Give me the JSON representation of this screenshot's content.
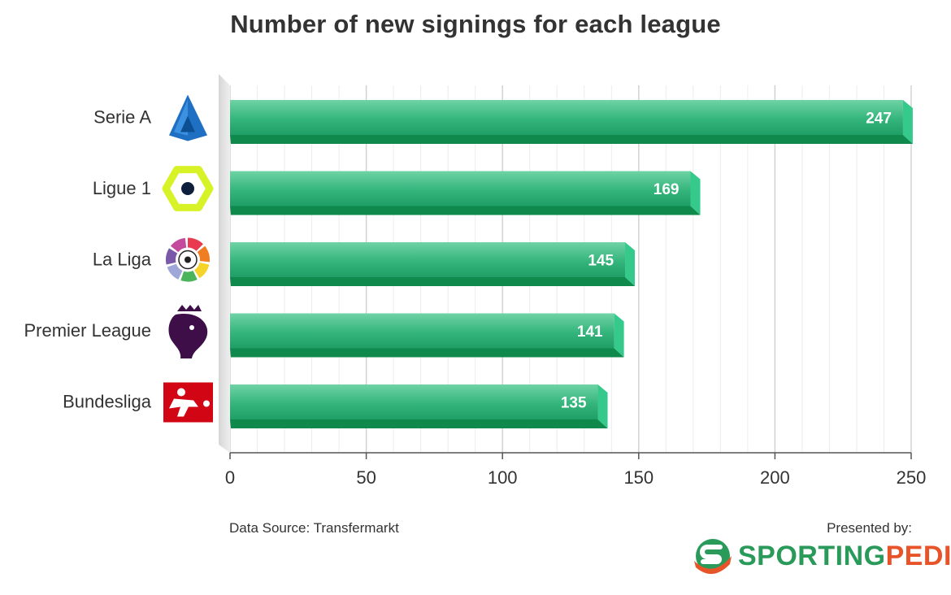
{
  "chart_data": {
    "type": "bar",
    "orientation": "horizontal",
    "title": "Number of new signings for each league",
    "categories": [
      "Serie A",
      "Ligue 1",
      "La Liga",
      "Premier League",
      "Bundesliga"
    ],
    "values": [
      247,
      169,
      145,
      141,
      135
    ],
    "xlim": [
      0,
      250
    ],
    "xticks": [
      "0",
      "50",
      "100",
      "150",
      "200",
      "250"
    ],
    "grid": true,
    "bar_color": "#2fbf85",
    "xlabel": "",
    "ylabel": ""
  },
  "logos": [
    {
      "league": "Serie A",
      "icon": "serie-a-logo"
    },
    {
      "league": "Ligue 1",
      "icon": "ligue-1-logo"
    },
    {
      "league": "La Liga",
      "icon": "la-liga-logo"
    },
    {
      "league": "Premier League",
      "icon": "premier-league-logo"
    },
    {
      "league": "Bundesliga",
      "icon": "bundesliga-logo"
    }
  ],
  "footer": {
    "source": "Data Source: Transfermarkt",
    "presented": "Presented by:",
    "brand_a": "SPORTING",
    "brand_b": "PEDIA",
    "brand_color_a": "#2a9a5a",
    "brand_color_b": "#e8542a"
  }
}
